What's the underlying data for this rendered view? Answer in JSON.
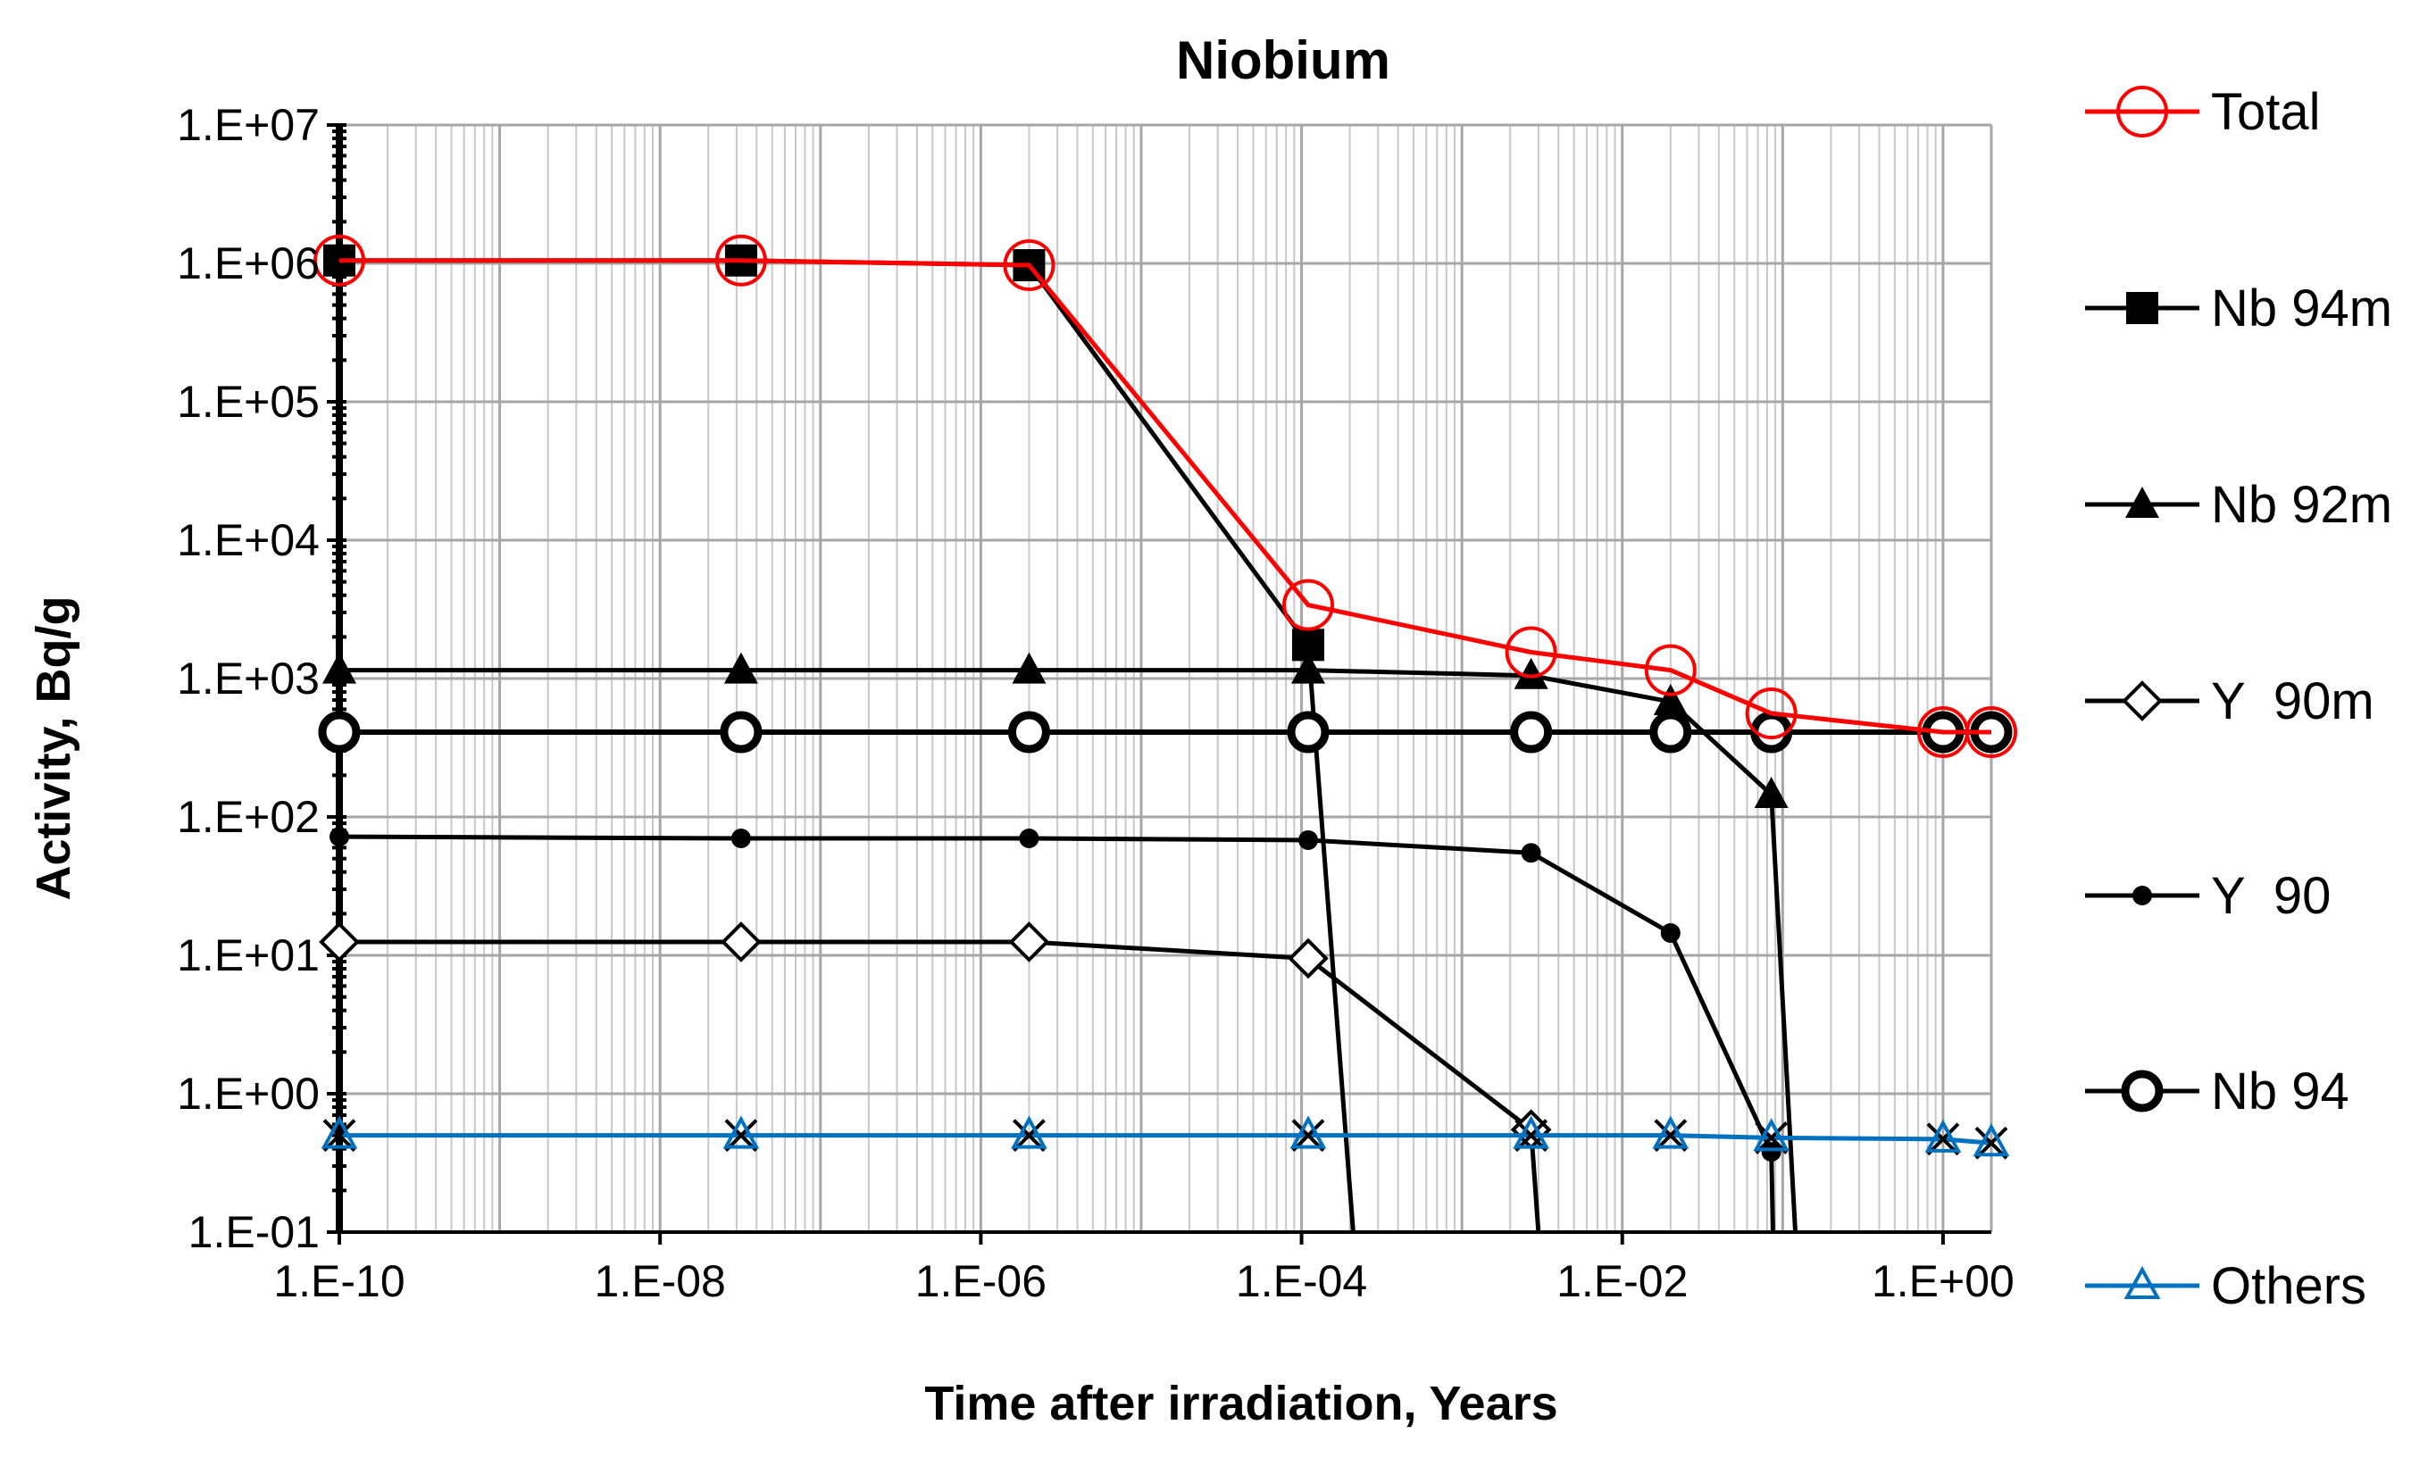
{
  "chart_data": {
    "type": "line",
    "title": "Niobium",
    "xlabel": "Time after irradiation,  Years",
    "ylabel": "Activity, Bq/g",
    "x_scale": "log",
    "y_scale": "log",
    "xlim": [
      1e-10,
      2
    ],
    "ylim": [
      0.1,
      10000000
    ],
    "x_ticks": [
      {
        "value": 1e-10,
        "label": "1.E-10"
      },
      {
        "value": 1e-08,
        "label": "1.E-08"
      },
      {
        "value": 1e-06,
        "label": "1.E-06"
      },
      {
        "value": 0.0001,
        "label": "1.E-04"
      },
      {
        "value": 0.01,
        "label": "1.E-02"
      },
      {
        "value": 1,
        "label": "1.E+00"
      }
    ],
    "y_ticks": [
      {
        "value": 10000000,
        "label": "1.E+07"
      },
      {
        "value": 1000000,
        "label": "1.E+06"
      },
      {
        "value": 100000,
        "label": "1.E+05"
      },
      {
        "value": 10000,
        "label": "1.E+04"
      },
      {
        "value": 1000,
        "label": "1.E+03"
      },
      {
        "value": 100,
        "label": "1.E+02"
      },
      {
        "value": 10,
        "label": "1.E+01"
      },
      {
        "value": 1,
        "label": "1.E+00"
      },
      {
        "value": 0.1,
        "label": "1.E-01"
      }
    ],
    "grid": true,
    "legend_position": "right",
    "series": [
      {
        "name": "Nb 94m",
        "color": "#000000",
        "marker": "square-filled",
        "x": [
          1e-10,
          3.2e-08,
          2e-06,
          0.00011,
          0.00021
        ],
        "y": [
          1050000,
          1050000,
          970000,
          1750,
          0.1
        ]
      },
      {
        "name": "Nb 92m",
        "color": "#000000",
        "marker": "triangle-filled",
        "x": [
          1e-10,
          3.2e-08,
          2e-06,
          0.00011,
          0.0027,
          0.02,
          0.085,
          0.12
        ],
        "y": [
          1150,
          1150,
          1150,
          1150,
          1050,
          680,
          145,
          0.1
        ]
      },
      {
        "name": "Y  90m",
        "color": "#000000",
        "marker": "diamond-open",
        "x": [
          1e-10,
          3.2e-08,
          2e-06,
          0.00011,
          0.0027,
          0.003
        ],
        "y": [
          12.5,
          12.5,
          12.5,
          9.5,
          0.55,
          0.1
        ]
      },
      {
        "name": "Y  90",
        "color": "#000000",
        "marker": "dot",
        "x": [
          1e-10,
          3.2e-08,
          2e-06,
          0.00011,
          0.0027,
          0.02,
          0.085,
          0.087
        ],
        "y": [
          72,
          70,
          70,
          68,
          55,
          14.5,
          0.38,
          0.1
        ]
      },
      {
        "name": "Others",
        "color": "#0070C0",
        "marker": "triangle-open",
        "markers_extra": "x-cross",
        "x": [
          1e-10,
          3.2e-08,
          2e-06,
          0.00011,
          0.0027,
          0.02,
          0.085,
          1.0,
          2.0
        ],
        "y": [
          0.5,
          0.5,
          0.5,
          0.5,
          0.5,
          0.5,
          0.48,
          0.47,
          0.44
        ]
      },
      {
        "name": "Nb 94",
        "color": "#000000",
        "marker": "circle-open-thick",
        "x": [
          1e-10,
          3.2e-08,
          2e-06,
          0.00011,
          0.0027,
          0.02,
          0.085,
          1.0,
          2.0
        ],
        "y": [
          410,
          410,
          410,
          410,
          410,
          410,
          410,
          410,
          410
        ]
      },
      {
        "name": "Total",
        "color": "#FF0000",
        "marker": "circle-open",
        "x": [
          1e-10,
          3.2e-08,
          2e-06,
          0.00011,
          0.0027,
          0.02,
          0.085,
          1.0,
          2.0
        ],
        "y": [
          1050000,
          1050000,
          970000,
          3400,
          1550,
          1150,
          560,
          410,
          410
        ]
      }
    ],
    "legend": [
      "Total",
      "Nb 94m",
      "Nb 92m",
      "Y  90m",
      "Y  90",
      "Nb 94",
      "Others"
    ]
  }
}
